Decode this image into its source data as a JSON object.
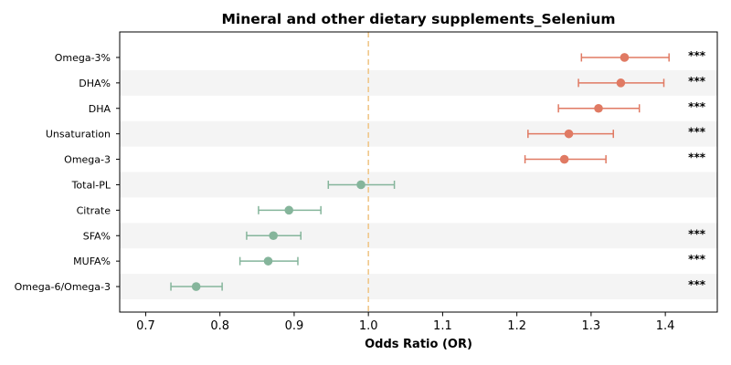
{
  "chart_data": {
    "type": "forest",
    "title": "Mineral and other dietary supplements_Selenium",
    "xlabel": "Odds Ratio (OR)",
    "ylabel": "",
    "xlim": [
      0.665,
      1.47
    ],
    "xticks": [
      0.7,
      0.8,
      0.9,
      1.0,
      1.1,
      1.2,
      1.3,
      1.4
    ],
    "xtick_labels": [
      "0.7",
      "0.8",
      "0.9",
      "1.0",
      "1.1",
      "1.2",
      "1.3",
      "1.4"
    ],
    "reference_line": 1.0,
    "colors": {
      "positive": "#e07a63",
      "negative": "#85b59b",
      "reference": "#f0c78a",
      "band": "#f4f4f4",
      "axis": "#000000"
    },
    "rows": [
      {
        "label": "Omega-3%",
        "or": 1.345,
        "ci_low": 1.287,
        "ci_high": 1.405,
        "sig": "***",
        "direction": "positive"
      },
      {
        "label": "DHA%",
        "or": 1.34,
        "ci_low": 1.283,
        "ci_high": 1.398,
        "sig": "***",
        "direction": "positive"
      },
      {
        "label": "DHA",
        "or": 1.31,
        "ci_low": 1.256,
        "ci_high": 1.365,
        "sig": "***",
        "direction": "positive"
      },
      {
        "label": "Unsaturation",
        "or": 1.27,
        "ci_low": 1.215,
        "ci_high": 1.33,
        "sig": "***",
        "direction": "positive"
      },
      {
        "label": "Omega-3",
        "or": 1.264,
        "ci_low": 1.211,
        "ci_high": 1.32,
        "sig": "***",
        "direction": "positive"
      },
      {
        "label": "Total-PL",
        "or": 0.99,
        "ci_low": 0.946,
        "ci_high": 1.035,
        "sig": "",
        "direction": "negative"
      },
      {
        "label": "Citrate",
        "or": 0.893,
        "ci_low": 0.852,
        "ci_high": 0.936,
        "sig": "",
        "direction": "negative"
      },
      {
        "label": "SFA%",
        "or": 0.872,
        "ci_low": 0.836,
        "ci_high": 0.909,
        "sig": "***",
        "direction": "negative"
      },
      {
        "label": "MUFA%",
        "or": 0.865,
        "ci_low": 0.827,
        "ci_high": 0.905,
        "sig": "***",
        "direction": "negative"
      },
      {
        "label": "Omega-6/Omega-3",
        "or": 0.768,
        "ci_low": 0.734,
        "ci_high": 0.803,
        "sig": "***",
        "direction": "negative"
      }
    ]
  }
}
